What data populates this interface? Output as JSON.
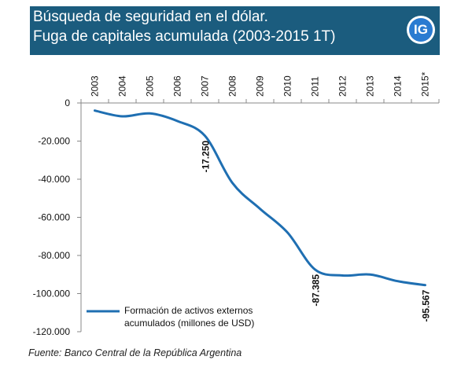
{
  "header": {
    "title": "Búsqueda de seguridad en el dólar.",
    "subtitle": "Fuga de capitales acumulada (2003-2015 1T)",
    "badge": "IG",
    "background_color": "#1b5c7e",
    "badge_color": "#2a7bd1"
  },
  "chart_data": {
    "type": "line",
    "title": "Búsqueda de seguridad en el dólar.",
    "subtitle": "Fuga de capitales acumulada (2003-2015 1T)",
    "xlabel": "",
    "ylabel": "",
    "categories": [
      "2003",
      "2004",
      "2005",
      "2006",
      "2007",
      "2008",
      "2009",
      "2010",
      "2011",
      "2012",
      "2013",
      "2014",
      "2015*"
    ],
    "series": [
      {
        "name": "Formación de activos externos acumulados (millones de USD)",
        "color": "#1f6fb2",
        "values": [
          -4000,
          -7000,
          -5500,
          -9500,
          -17250,
          -42000,
          -55500,
          -68000,
          -87385,
          -90500,
          -90000,
          -93500,
          -95567
        ]
      }
    ],
    "data_labels": [
      {
        "category": "2007",
        "text": "-17.250"
      },
      {
        "category": "2011",
        "text": "-87.385"
      },
      {
        "category": "2015*",
        "text": "-95.567"
      }
    ],
    "y_ticks": [
      "0",
      "-20.000",
      "-40.000",
      "-60.000",
      "-80.000",
      "-100.000",
      "-120.000"
    ],
    "y_tick_values": [
      0,
      -20000,
      -40000,
      -60000,
      -80000,
      -100000,
      -120000
    ],
    "ylim": [
      -120000,
      0
    ],
    "x_axis_position": "top",
    "grid": false,
    "legend": {
      "position": "bottom-left",
      "lines": [
        "Formación de activos externos",
        "acumulados (millones de USD)"
      ]
    }
  },
  "source": "Fuente: Banco Central de la República Argentina"
}
